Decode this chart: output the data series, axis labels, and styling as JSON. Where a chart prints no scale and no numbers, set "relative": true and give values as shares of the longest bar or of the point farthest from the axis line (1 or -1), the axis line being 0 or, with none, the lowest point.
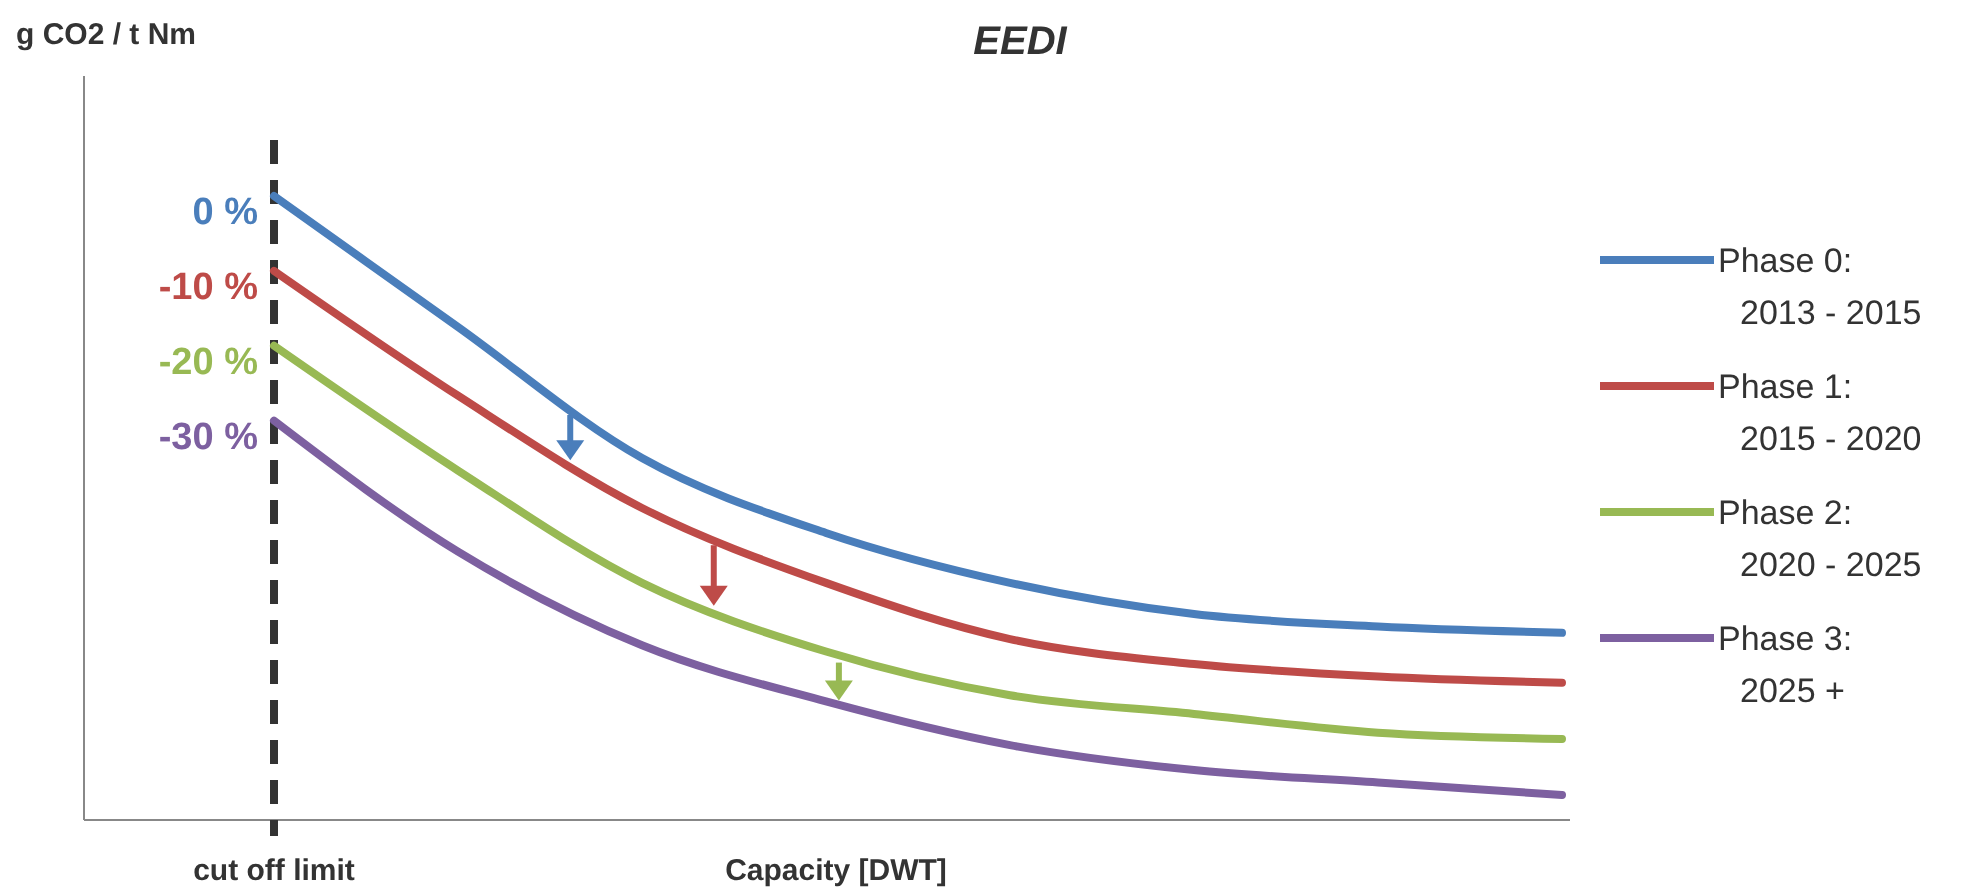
{
  "chart_data": {
    "type": "line",
    "title": "EEDI",
    "xlabel": "Capacity [DWT]",
    "ylabel": "g CO2 / t Nm",
    "relative": true,
    "categories": [
      null,
      null,
      null,
      null,
      null,
      null,
      null,
      null
    ],
    "series": [
      {
        "name": "Phase 0: 2013 - 2015",
        "color": "#4a7ebb",
        "values": [
          1,
          0.79,
          0.58,
          0.46,
          0.38,
          0.33,
          0.31,
          0.3
        ]
      },
      {
        "name": "Phase 1: 2015 - 2020",
        "color": "#be4b48",
        "values": [
          0.88,
          0.68,
          0.5,
          0.38,
          0.29,
          0.25,
          0.23,
          0.22
        ]
      },
      {
        "name": "Phase 2: 2020 - 2025",
        "color": "#98b954",
        "values": [
          0.76,
          0.56,
          0.38,
          0.27,
          0.2,
          0.17,
          0.14,
          0.13
        ]
      },
      {
        "name": "Phase 3: 2025 +",
        "color": "#7d60a0",
        "values": [
          0.64,
          0.43,
          0.28,
          0.19,
          0.12,
          0.08,
          0.06,
          0.04
        ]
      }
    ],
    "annotations": [
      "0 %",
      "-10 %",
      "-20 %",
      "-30 %",
      "cut off limit"
    ],
    "legend": "right",
    "marker": "none",
    "line_style": "solid",
    "grid": false
  }
}
